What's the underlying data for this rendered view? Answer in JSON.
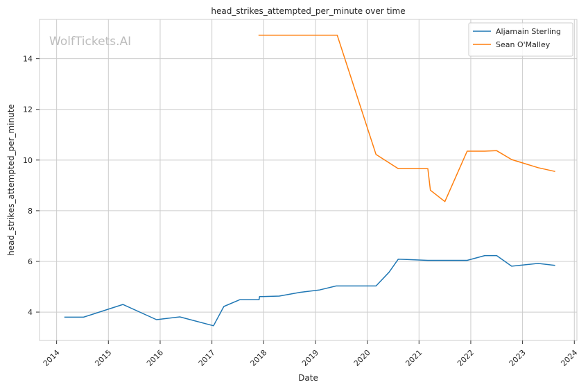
{
  "chart_data": {
    "type": "line",
    "title": "head_strikes_attempted_per_minute over time",
    "xlabel": "Date",
    "ylabel": "head_strikes_attempted_per_minute",
    "watermark": "WolfTickets.AI",
    "xlim": [
      2013.67,
      2024.05
    ],
    "ylim": [
      2.88,
      15.55
    ],
    "xticks": [
      2014,
      2015,
      2016,
      2017,
      2018,
      2019,
      2020,
      2021,
      2022,
      2023,
      2024
    ],
    "yticks": [
      4,
      6,
      8,
      10,
      12,
      14
    ],
    "grid": true,
    "legend_position": "top-right",
    "series": [
      {
        "name": "Aljamain Sterling",
        "color": "#1f77b4",
        "points": [
          [
            2014.15,
            3.8
          ],
          [
            2014.52,
            3.8
          ],
          [
            2015.28,
            4.3
          ],
          [
            2015.93,
            3.7
          ],
          [
            2016.38,
            3.81
          ],
          [
            2017.03,
            3.46
          ],
          [
            2017.23,
            4.22
          ],
          [
            2017.54,
            4.49
          ],
          [
            2017.91,
            4.49
          ],
          [
            2017.92,
            4.61
          ],
          [
            2018.3,
            4.63
          ],
          [
            2018.7,
            4.78
          ],
          [
            2019.07,
            4.87
          ],
          [
            2019.4,
            5.03
          ],
          [
            2020.17,
            5.03
          ],
          [
            2020.42,
            5.57
          ],
          [
            2020.6,
            6.09
          ],
          [
            2021.17,
            6.04
          ],
          [
            2021.93,
            6.04
          ],
          [
            2022.27,
            6.23
          ],
          [
            2022.5,
            6.23
          ],
          [
            2022.79,
            5.81
          ],
          [
            2023.3,
            5.92
          ],
          [
            2023.63,
            5.84
          ]
        ]
      },
      {
        "name": "Sean O'Malley",
        "color": "#ff7f0e",
        "points": [
          [
            2017.9,
            14.93
          ],
          [
            2019.42,
            14.93
          ],
          [
            2020.17,
            10.22
          ],
          [
            2020.6,
            9.66
          ],
          [
            2021.17,
            9.66
          ],
          [
            2021.22,
            8.81
          ],
          [
            2021.5,
            8.36
          ],
          [
            2021.93,
            10.35
          ],
          [
            2022.27,
            10.35
          ],
          [
            2022.5,
            10.37
          ],
          [
            2022.79,
            10.02
          ],
          [
            2023.3,
            9.7
          ],
          [
            2023.63,
            9.55
          ]
        ]
      }
    ]
  }
}
